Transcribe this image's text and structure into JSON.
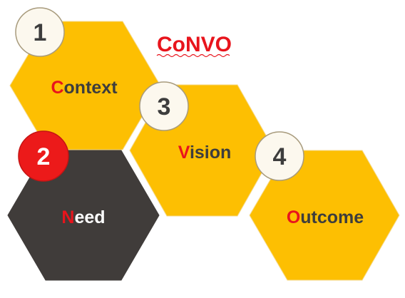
{
  "title": {
    "parts": [
      {
        "text": "Co",
        "color": "#e8141c"
      },
      {
        "text": "NVO",
        "color": "#e8141c"
      }
    ]
  },
  "colors": {
    "hex_yellow": "#fdbf02",
    "hex_dark": "#403c3a",
    "accent_red": "#e8141c",
    "label_dark": "#3d3d3d",
    "label_light": "#ffffff",
    "badge_fill": "#fcf8ee",
    "badge_stroke": "#a89b7d",
    "badge_red": "#ec1a1a"
  },
  "hexagons": [
    {
      "number": "1",
      "first": "C",
      "rest": "ontext",
      "style": "yellow"
    },
    {
      "number": "2",
      "first": "N",
      "rest": "eed",
      "style": "dark"
    },
    {
      "number": "3",
      "first": "V",
      "rest": "ision",
      "style": "yellow"
    },
    {
      "number": "4",
      "first": "O",
      "rest": "utcome",
      "style": "yellow"
    }
  ]
}
